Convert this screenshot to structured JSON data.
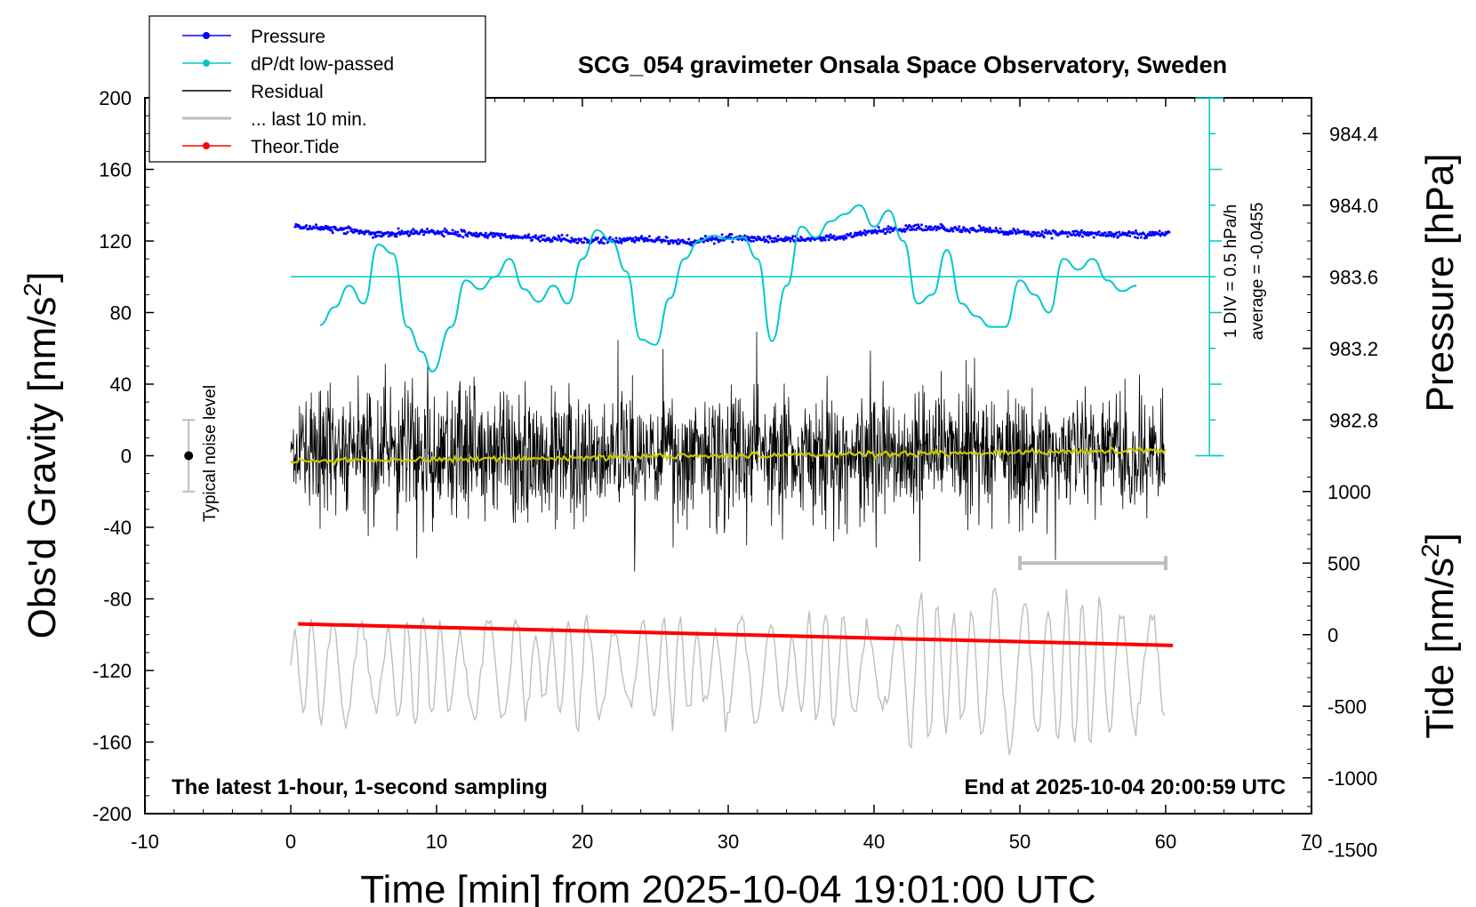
{
  "chart_data": {
    "type": "line",
    "title": "SCG_054 gravimeter Onsala Space Observatory, Sweden",
    "footer_left": "The latest 1-hour, 1-second sampling",
    "footer_right": "End at 2025-10-04 20:00:59 UTC",
    "xlabel": "Time [min] from 2025-10-04 19:01:00 UTC",
    "xlim": [
      -10,
      70
    ],
    "xticks": [
      "-10",
      "0",
      "10",
      "20",
      "30",
      "40",
      "50",
      "60",
      "70"
    ],
    "y_left": {
      "label_main": "Obs'd Gravity [nm/s",
      "label_sup": "2",
      "label_end": "]",
      "ylim": [
        -200,
        200
      ],
      "ticks": [
        "-200",
        "-160",
        "-120",
        "-80",
        "-40",
        "0",
        "40",
        "80",
        "120",
        "160",
        "200"
      ]
    },
    "y_pressure": {
      "label": "Pressure [hPa]",
      "ticks": [
        "982.8",
        "983.2",
        "983.6",
        "984.0",
        "984.4"
      ]
    },
    "y_tide": {
      "label_main": "Tide [nm/s",
      "label_sup": "2",
      "label_end": "]",
      "ticks": [
        "-1500",
        "-1000",
        "-500",
        "0",
        "500",
        "1000"
      ]
    },
    "legend": [
      {
        "name": "Pressure",
        "color": "#0000ff",
        "marker": true
      },
      {
        "name": "dP/dt low-passed",
        "color": "#00c8c8",
        "marker": true
      },
      {
        "name": "Residual",
        "color": "#000000",
        "marker": false
      },
      {
        "name": "... last 10 min.",
        "color": "#bebebe",
        "marker": false
      },
      {
        "name": "Theor.Tide",
        "color": "#ff0000",
        "marker": true
      }
    ],
    "dpdt_scale": {
      "line1": "1 DIV = 0.5 hPa/h",
      "line2": "average = -0.0455"
    },
    "noise_label": "Typical noise level",
    "series": {
      "pressure_gravity_equiv": {
        "x": [
          0,
          3,
          6,
          9,
          12,
          15,
          18,
          21,
          24,
          27,
          30,
          33,
          36,
          39,
          42,
          45,
          48,
          51,
          54,
          57,
          60
        ],
        "y": [
          128,
          127,
          124,
          125,
          124,
          123,
          121,
          120,
          121,
          119,
          122,
          121,
          121,
          124,
          127,
          127,
          126,
          124,
          124,
          124,
          124
        ]
      },
      "dpdt_lowpassed": {
        "x": [
          2,
          3,
          4,
          5,
          6,
          7,
          8,
          9,
          9.7,
          11,
          12,
          13,
          14,
          15,
          16,
          17,
          18,
          19,
          20,
          21,
          22,
          23,
          24,
          25,
          26,
          27,
          28,
          29,
          30,
          31,
          32,
          33,
          34,
          35,
          36,
          37,
          38,
          39,
          40,
          41,
          42,
          43,
          44,
          45,
          46,
          47,
          48,
          49,
          50,
          51,
          52,
          53,
          54,
          55,
          56,
          57,
          58
        ],
        "y": [
          73,
          83,
          95,
          85,
          118,
          113,
          72,
          58,
          47,
          72,
          98,
          93,
          100,
          110,
          93,
          86,
          95,
          85,
          110,
          126,
          120,
          103,
          65,
          62,
          88,
          110,
          120,
          123,
          121,
          122,
          110,
          64,
          95,
          128,
          122,
          131,
          135,
          140,
          128,
          137,
          120,
          85,
          90,
          115,
          85,
          78,
          72,
          72,
          98,
          90,
          80,
          110,
          104,
          110,
          98,
          92,
          95
        ]
      },
      "residual_trend": {
        "x": [
          0,
          10,
          20,
          30,
          40,
          50,
          60
        ],
        "y": [
          -3,
          -2,
          -1,
          0,
          1,
          2,
          3
        ]
      },
      "theoretical_tide": {
        "x": [
          0.5,
          60.5
        ],
        "y": [
          -94,
          -106
        ]
      }
    },
    "noise_bar": {
      "x": -7,
      "center": 0,
      "half_range": 20
    },
    "last10_bar": {
      "x_start": 50,
      "x_end": 60,
      "tide_level": 500
    }
  }
}
